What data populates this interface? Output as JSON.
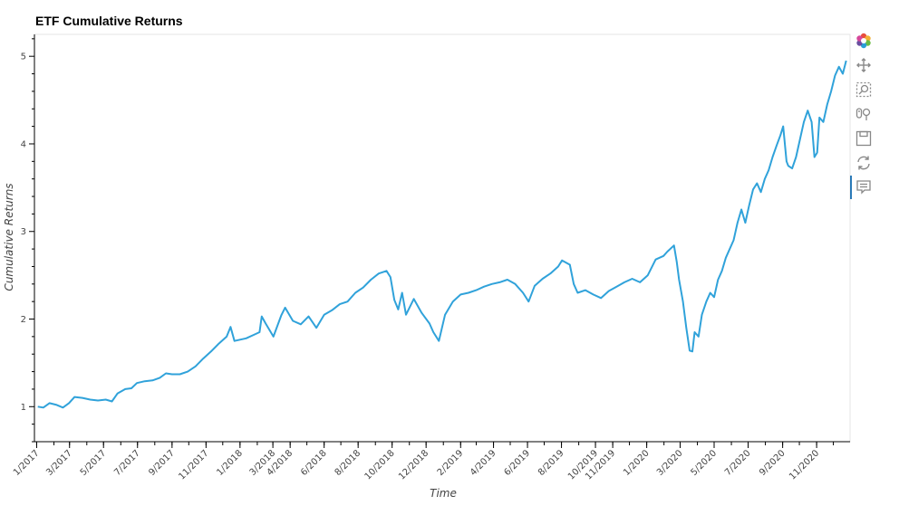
{
  "chart_data": {
    "type": "line",
    "title": "ETF Cumulative Returns",
    "xlabel": "Time",
    "ylabel": "Cumulative Returns",
    "ylim": [
      0.6,
      5.25
    ],
    "yticks": [
      1,
      2,
      3,
      4,
      5
    ],
    "xlim": [
      "2016-12-28",
      "2020-12-31"
    ],
    "xtick_labels": [
      {
        "date": "2017-01-01",
        "label": "1/2017"
      },
      {
        "date": "2017-03-01",
        "label": "3/2017"
      },
      {
        "date": "2017-05-01",
        "label": "5/2017"
      },
      {
        "date": "2017-07-01",
        "label": "7/2017"
      },
      {
        "date": "2017-09-01",
        "label": "9/2017"
      },
      {
        "date": "2017-11-01",
        "label": "11/2017"
      },
      {
        "date": "2018-01-01",
        "label": "1/2018"
      },
      {
        "date": "2018-03-01",
        "label": "3/2018"
      },
      {
        "date": "2018-04-01",
        "label": "4/2018"
      },
      {
        "date": "2018-06-01",
        "label": "6/2018"
      },
      {
        "date": "2018-08-01",
        "label": "8/2018"
      },
      {
        "date": "2018-10-01",
        "label": "10/2018"
      },
      {
        "date": "2018-12-01",
        "label": "12/2018"
      },
      {
        "date": "2019-02-01",
        "label": "2/2019"
      },
      {
        "date": "2019-04-01",
        "label": "4/2019"
      },
      {
        "date": "2019-06-01",
        "label": "6/2019"
      },
      {
        "date": "2019-08-01",
        "label": "8/2019"
      },
      {
        "date": "2019-10-01",
        "label": "10/2019"
      },
      {
        "date": "2019-11-01",
        "label": "11/2019"
      },
      {
        "date": "2020-01-01",
        "label": "1/2020"
      },
      {
        "date": "2020-03-01",
        "label": "3/2020"
      },
      {
        "date": "2020-05-01",
        "label": "5/2020"
      },
      {
        "date": "2020-07-01",
        "label": "7/2020"
      },
      {
        "date": "2020-09-01",
        "label": "9/2020"
      },
      {
        "date": "2020-11-01",
        "label": "11/2020"
      }
    ],
    "grid": false,
    "series": [
      {
        "color": "#30a2da",
        "points": [
          [
            "2017-01-03",
            1.0
          ],
          [
            "2017-01-13",
            0.99
          ],
          [
            "2017-01-24",
            1.04
          ],
          [
            "2017-02-06",
            1.02
          ],
          [
            "2017-02-17",
            0.99
          ],
          [
            "2017-02-28",
            1.04
          ],
          [
            "2017-03-10",
            1.11
          ],
          [
            "2017-03-24",
            1.1
          ],
          [
            "2017-04-07",
            1.08
          ],
          [
            "2017-04-21",
            1.07
          ],
          [
            "2017-05-05",
            1.08
          ],
          [
            "2017-05-16",
            1.06
          ],
          [
            "2017-05-26",
            1.15
          ],
          [
            "2017-06-09",
            1.2
          ],
          [
            "2017-06-20",
            1.21
          ],
          [
            "2017-06-30",
            1.27
          ],
          [
            "2017-07-14",
            1.29
          ],
          [
            "2017-07-28",
            1.3
          ],
          [
            "2017-08-10",
            1.33
          ],
          [
            "2017-08-21",
            1.38
          ],
          [
            "2017-09-01",
            1.37
          ],
          [
            "2017-09-15",
            1.37
          ],
          [
            "2017-09-29",
            1.4
          ],
          [
            "2017-10-13",
            1.46
          ],
          [
            "2017-10-27",
            1.55
          ],
          [
            "2017-11-10",
            1.63
          ],
          [
            "2017-11-24",
            1.72
          ],
          [
            "2017-12-08",
            1.8
          ],
          [
            "2017-12-15",
            1.91
          ],
          [
            "2017-12-22",
            1.75
          ],
          [
            "2018-01-12",
            1.78
          ],
          [
            "2018-01-26",
            1.82
          ],
          [
            "2018-02-05",
            1.85
          ],
          [
            "2018-02-09",
            2.03
          ],
          [
            "2018-02-16",
            1.95
          ],
          [
            "2018-03-02",
            1.8
          ],
          [
            "2018-03-16",
            2.04
          ],
          [
            "2018-03-23",
            2.13
          ],
          [
            "2018-04-06",
            1.98
          ],
          [
            "2018-04-20",
            1.94
          ],
          [
            "2018-05-04",
            2.03
          ],
          [
            "2018-05-18",
            1.9
          ],
          [
            "2018-06-01",
            2.05
          ],
          [
            "2018-06-15",
            2.1
          ],
          [
            "2018-06-29",
            2.17
          ],
          [
            "2018-07-13",
            2.2
          ],
          [
            "2018-07-27",
            2.3
          ],
          [
            "2018-08-10",
            2.36
          ],
          [
            "2018-08-24",
            2.45
          ],
          [
            "2018-09-07",
            2.52
          ],
          [
            "2018-09-21",
            2.55
          ],
          [
            "2018-09-28",
            2.48
          ],
          [
            "2018-10-05",
            2.22
          ],
          [
            "2018-10-12",
            2.11
          ],
          [
            "2018-10-19",
            2.3
          ],
          [
            "2018-10-26",
            2.05
          ],
          [
            "2018-11-09",
            2.23
          ],
          [
            "2018-11-23",
            2.07
          ],
          [
            "2018-12-07",
            1.95
          ],
          [
            "2018-12-14",
            1.85
          ],
          [
            "2018-12-24",
            1.75
          ],
          [
            "2019-01-04",
            2.05
          ],
          [
            "2019-01-18",
            2.2
          ],
          [
            "2019-02-01",
            2.28
          ],
          [
            "2019-02-15",
            2.3
          ],
          [
            "2019-03-01",
            2.33
          ],
          [
            "2019-03-15",
            2.37
          ],
          [
            "2019-03-29",
            2.4
          ],
          [
            "2019-04-12",
            2.42
          ],
          [
            "2019-04-26",
            2.45
          ],
          [
            "2019-05-10",
            2.4
          ],
          [
            "2019-05-24",
            2.3
          ],
          [
            "2019-06-03",
            2.2
          ],
          [
            "2019-06-14",
            2.38
          ],
          [
            "2019-06-28",
            2.46
          ],
          [
            "2019-07-12",
            2.52
          ],
          [
            "2019-07-26",
            2.6
          ],
          [
            "2019-08-02",
            2.67
          ],
          [
            "2019-08-16",
            2.62
          ],
          [
            "2019-08-23",
            2.4
          ],
          [
            "2019-08-30",
            2.3
          ],
          [
            "2019-09-13",
            2.33
          ],
          [
            "2019-09-27",
            2.28
          ],
          [
            "2019-10-11",
            2.24
          ],
          [
            "2019-10-25",
            2.32
          ],
          [
            "2019-11-08",
            2.37
          ],
          [
            "2019-11-22",
            2.42
          ],
          [
            "2019-12-06",
            2.46
          ],
          [
            "2019-12-20",
            2.42
          ],
          [
            "2020-01-03",
            2.5
          ],
          [
            "2020-01-17",
            2.68
          ],
          [
            "2020-01-31",
            2.72
          ],
          [
            "2020-02-07",
            2.77
          ],
          [
            "2020-02-19",
            2.84
          ],
          [
            "2020-02-24",
            2.65
          ],
          [
            "2020-02-28",
            2.45
          ],
          [
            "2020-03-06",
            2.2
          ],
          [
            "2020-03-12",
            1.9
          ],
          [
            "2020-03-18",
            1.64
          ],
          [
            "2020-03-23",
            1.63
          ],
          [
            "2020-03-27",
            1.85
          ],
          [
            "2020-04-03",
            1.8
          ],
          [
            "2020-04-09",
            2.05
          ],
          [
            "2020-04-17",
            2.2
          ],
          [
            "2020-04-24",
            2.3
          ],
          [
            "2020-05-01",
            2.25
          ],
          [
            "2020-05-08",
            2.45
          ],
          [
            "2020-05-15",
            2.55
          ],
          [
            "2020-05-22",
            2.7
          ],
          [
            "2020-06-05",
            2.9
          ],
          [
            "2020-06-12",
            3.1
          ],
          [
            "2020-06-19",
            3.25
          ],
          [
            "2020-06-26",
            3.1
          ],
          [
            "2020-07-03",
            3.3
          ],
          [
            "2020-07-10",
            3.48
          ],
          [
            "2020-07-17",
            3.55
          ],
          [
            "2020-07-24",
            3.45
          ],
          [
            "2020-07-31",
            3.6
          ],
          [
            "2020-08-07",
            3.7
          ],
          [
            "2020-08-14",
            3.85
          ],
          [
            "2020-08-21",
            3.98
          ],
          [
            "2020-08-28",
            4.1
          ],
          [
            "2020-09-02",
            4.2
          ],
          [
            "2020-09-08",
            3.8
          ],
          [
            "2020-09-11",
            3.75
          ],
          [
            "2020-09-18",
            3.72
          ],
          [
            "2020-09-25",
            3.85
          ],
          [
            "2020-10-02",
            4.05
          ],
          [
            "2020-10-09",
            4.25
          ],
          [
            "2020-10-16",
            4.38
          ],
          [
            "2020-10-23",
            4.25
          ],
          [
            "2020-10-28",
            3.85
          ],
          [
            "2020-11-02",
            3.9
          ],
          [
            "2020-11-06",
            4.3
          ],
          [
            "2020-11-13",
            4.25
          ],
          [
            "2020-11-20",
            4.45
          ],
          [
            "2020-11-27",
            4.6
          ],
          [
            "2020-12-04",
            4.78
          ],
          [
            "2020-12-11",
            4.88
          ],
          [
            "2020-12-18",
            4.8
          ],
          [
            "2020-12-24",
            4.95
          ]
        ]
      }
    ]
  },
  "toolbar": {
    "tools": [
      {
        "icon": "bokeh-logo-icon"
      },
      {
        "icon": "pan-icon"
      },
      {
        "icon": "box-zoom-icon"
      },
      {
        "icon": "wheel-zoom-icon"
      },
      {
        "icon": "save-icon"
      },
      {
        "icon": "reset-icon"
      },
      {
        "icon": "hover-icon"
      }
    ]
  }
}
